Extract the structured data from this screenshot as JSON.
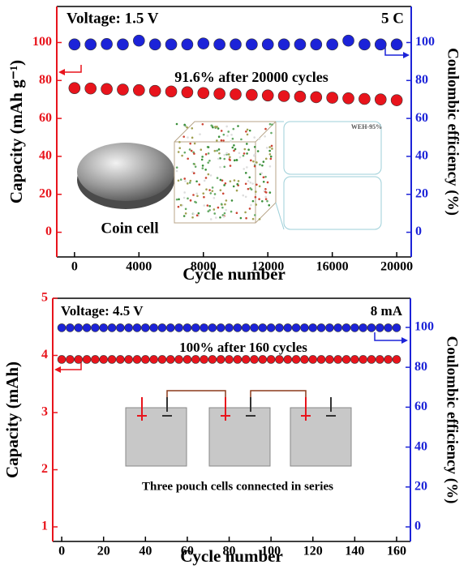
{
  "chart_data": [
    {
      "type": "scatter",
      "xlabel": "Cycle number",
      "ylabel": "Capacity (mAh g⁻¹)",
      "y2label": "Coulombic efficiency (%)",
      "x": [
        0,
        1000,
        2000,
        3000,
        4000,
        5000,
        6000,
        7000,
        8000,
        9000,
        10000,
        11000,
        12000,
        13000,
        14000,
        15000,
        16000,
        17000,
        18000,
        19000,
        20000
      ],
      "series": [
        {
          "name": "Capacity",
          "color": "#e8141c",
          "values": [
            76.0,
            75.8,
            75.5,
            75.2,
            74.9,
            74.5,
            74.2,
            73.8,
            73.4,
            73.0,
            72.7,
            72.4,
            72.1,
            71.8,
            71.5,
            71.2,
            70.9,
            70.6,
            70.3,
            70.0,
            69.6
          ]
        },
        {
          "name": "Coulombic efficiency",
          "color": "#1c23d8",
          "axis": "y2",
          "values": [
            99,
            99,
            99.2,
            99,
            101,
            99,
            99,
            99,
            99.5,
            99,
            99,
            99,
            99,
            99,
            99,
            99,
            99,
            101,
            99,
            99,
            99
          ]
        }
      ],
      "xlim": [
        -1100,
        20900
      ],
      "xticks": [
        0,
        4000,
        8000,
        12000,
        16000,
        20000
      ],
      "ylim": [
        -13,
        119
      ],
      "yticks": [
        0,
        20,
        40,
        60,
        80,
        100
      ],
      "y2lim": [
        -13,
        119
      ],
      "y2ticks": [
        0,
        20,
        40,
        60,
        80,
        100
      ],
      "annotations": [
        "Voltage: 1.5 V",
        "5 C",
        "91.6% after 20000 cycles",
        "Coin cell",
        "WEH-95%"
      ]
    },
    {
      "type": "scatter",
      "xlabel": "Cycle number",
      "ylabel": "Capacity (mAh)",
      "y2label": "Coulombic efficiency (%)",
      "x": [
        0,
        4,
        8,
        12,
        16,
        20,
        24,
        28,
        32,
        36,
        40,
        44,
        48,
        52,
        56,
        60,
        64,
        68,
        72,
        76,
        80,
        84,
        88,
        92,
        96,
        100,
        104,
        108,
        112,
        116,
        120,
        124,
        128,
        132,
        136,
        140,
        144,
        148,
        152,
        156,
        160
      ],
      "series": [
        {
          "name": "Capacity",
          "color": "#e8141c",
          "values": [
            3.93,
            3.93,
            3.93,
            3.93,
            3.93,
            3.93,
            3.93,
            3.93,
            3.93,
            3.93,
            3.93,
            3.93,
            3.93,
            3.93,
            3.93,
            3.93,
            3.93,
            3.93,
            3.93,
            3.93,
            3.93,
            3.93,
            3.93,
            3.93,
            3.93,
            3.93,
            3.93,
            3.93,
            3.93,
            3.93,
            3.93,
            3.93,
            3.93,
            3.93,
            3.93,
            3.93,
            3.93,
            3.93,
            3.93,
            3.93,
            3.93
          ]
        },
        {
          "name": "Coulombic efficiency",
          "color": "#1c23d8",
          "axis": "y2",
          "values": [
            99.8,
            99.8,
            99.8,
            99.8,
            99.8,
            99.8,
            99.8,
            99.8,
            99.8,
            99.8,
            99.8,
            99.8,
            99.8,
            99.8,
            99.8,
            99.8,
            99.8,
            99.8,
            99.8,
            99.8,
            99.8,
            99.8,
            99.8,
            99.8,
            99.8,
            99.8,
            99.8,
            99.8,
            99.8,
            99.8,
            99.8,
            99.8,
            99.8,
            99.8,
            99.8,
            99.8,
            99.8,
            99.8,
            99.8,
            99.8,
            99.8
          ]
        }
      ],
      "xlim": [
        -4.3,
        166.6
      ],
      "xticks": [
        0,
        20,
        40,
        60,
        80,
        100,
        120,
        140,
        160
      ],
      "ylim": [
        0.745,
        5
      ],
      "yticks": [
        1,
        2,
        3,
        4,
        5
      ],
      "y2lim": [
        -7.3,
        114.6
      ],
      "y2ticks": [
        0,
        20,
        40,
        60,
        80,
        100
      ],
      "annotations": [
        "Voltage: 4.5 V",
        "8 mA",
        "100% after 160 cycles",
        "Three pouch cells connected in series"
      ]
    }
  ]
}
